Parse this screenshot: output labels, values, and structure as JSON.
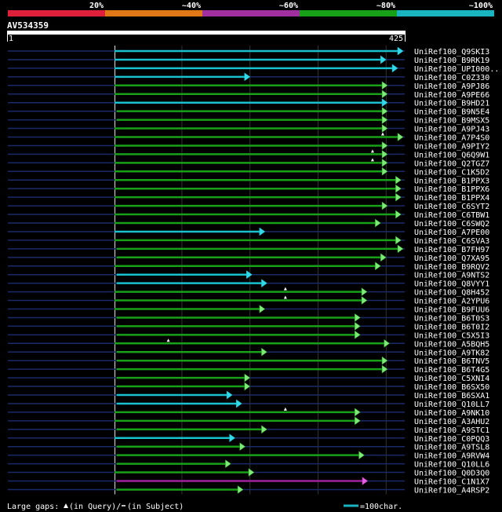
{
  "query": {
    "name": "AV534359",
    "length": 425,
    "start_label": "1",
    "end_label": "425"
  },
  "identity_scale": {
    "labels": [
      "20%",
      "~40%",
      "~60%",
      "~80%",
      "~100%"
    ],
    "colors": [
      "#e0203a",
      "#e07818",
      "#a030a0",
      "#18a018",
      "#18b4c0"
    ]
  },
  "legend": {
    "large_gaps_label": "Large gaps: ",
    "in_query": "(in Query)/",
    "in_subject": "(in Subject)",
    "scale_label": "=100char."
  },
  "chart_data": {
    "type": "alignment-overview",
    "x_axis": {
      "min": 1,
      "max": 425,
      "gridlines": [
        1,
        100,
        200,
        300,
        400
      ]
    },
    "hits": [
      {
        "name": "UniRef100_Q9SKI3",
        "cls": "cyan",
        "start": 1,
        "end": 425,
        "gap": null
      },
      {
        "name": "UniRef100_B9RK19",
        "cls": "cyan",
        "start": 1,
        "end": 400,
        "gap": null
      },
      {
        "name": "UniRef100_UPI000..",
        "cls": "cyan",
        "start": 1,
        "end": 417,
        "gap": null
      },
      {
        "name": "UniRef100_C0Z330",
        "cls": "cyan",
        "start": 1,
        "end": 200,
        "gap": null
      },
      {
        "name": "UniRef100_A9PJ86",
        "cls": "green",
        "start": 1,
        "end": 402,
        "gap": null
      },
      {
        "name": "UniRef100_A9PE66",
        "cls": "green",
        "start": 1,
        "end": 402,
        "gap": null
      },
      {
        "name": "UniRef100_B9HD21",
        "cls": "cyan",
        "start": 1,
        "end": 402,
        "gap": null
      },
      {
        "name": "UniRef100_B9N5E4",
        "cls": "green",
        "start": 4,
        "end": 402,
        "gap": null
      },
      {
        "name": "UniRef100_B9MSX5",
        "cls": "green",
        "start": 4,
        "end": 402,
        "gap": null
      },
      {
        "name": "UniRef100_A9PJ43",
        "cls": "green",
        "start": 1,
        "end": 402,
        "gap": null
      },
      {
        "name": "UniRef100_A7P4S0",
        "cls": "green",
        "start": 1,
        "end": 425,
        "gap": 395
      },
      {
        "name": "UniRef100_A9PIY2",
        "cls": "green",
        "start": 1,
        "end": 402,
        "gap": null
      },
      {
        "name": "UniRef100_Q6Q9W1",
        "cls": "green",
        "start": 1,
        "end": 402,
        "gap": 380
      },
      {
        "name": "UniRef100_Q2TGZ7",
        "cls": "green",
        "start": 1,
        "end": 402,
        "gap": 380
      },
      {
        "name": "UniRef100_C1K5D2",
        "cls": "green",
        "start": 1,
        "end": 402,
        "gap": null
      },
      {
        "name": "UniRef100_B1PPX3",
        "cls": "green",
        "start": 1,
        "end": 422,
        "gap": null
      },
      {
        "name": "UniRef100_B1PPX6",
        "cls": "green",
        "start": 1,
        "end": 422,
        "gap": null
      },
      {
        "name": "UniRef100_B1PPX4",
        "cls": "green",
        "start": 1,
        "end": 422,
        "gap": null
      },
      {
        "name": "UniRef100_C6SYT2",
        "cls": "green",
        "start": 1,
        "end": 402,
        "gap": null
      },
      {
        "name": "UniRef100_C6TBW1",
        "cls": "green",
        "start": 1,
        "end": 422,
        "gap": null
      },
      {
        "name": "UniRef100_C6SWQ2",
        "cls": "green",
        "start": 1,
        "end": 392,
        "gap": null
      },
      {
        "name": "UniRef100_A7PE00",
        "cls": "cyan",
        "start": 1,
        "end": 222,
        "gap": null
      },
      {
        "name": "UniRef100_C6SVA3",
        "cls": "green",
        "start": 1,
        "end": 422,
        "gap": null
      },
      {
        "name": "UniRef100_B7FH97",
        "cls": "green",
        "start": 4,
        "end": 425,
        "gap": null
      },
      {
        "name": "UniRef100_Q7XA95",
        "cls": "green",
        "start": 4,
        "end": 400,
        "gap": null
      },
      {
        "name": "UniRef100_B9RQV2",
        "cls": "green",
        "start": 1,
        "end": 392,
        "gap": null
      },
      {
        "name": "UniRef100_A9NTS2",
        "cls": "cyan",
        "start": 4,
        "end": 203,
        "gap": null
      },
      {
        "name": "UniRef100_Q8VYY1",
        "cls": "cyan",
        "start": 4,
        "end": 225,
        "gap": null
      },
      {
        "name": "UniRef100_Q8H452",
        "cls": "green",
        "start": 1,
        "end": 372,
        "gap": 252
      },
      {
        "name": "UniRef100_A2YPU6",
        "cls": "green",
        "start": 1,
        "end": 372,
        "gap": 252
      },
      {
        "name": "UniRef100_B9FUU6",
        "cls": "green",
        "start": 1,
        "end": 222,
        "gap": null
      },
      {
        "name": "UniRef100_B6T0S3",
        "cls": "green",
        "start": 4,
        "end": 362,
        "gap": null
      },
      {
        "name": "UniRef100_B6T0I2",
        "cls": "green",
        "start": 4,
        "end": 362,
        "gap": null
      },
      {
        "name": "UniRef100_C5X5I3",
        "cls": "green",
        "start": 4,
        "end": 362,
        "gap": null
      },
      {
        "name": "UniRef100_A5BQH5",
        "cls": "green",
        "start": 1,
        "end": 405,
        "gap": 80
      },
      {
        "name": "UniRef100_A9TK82",
        "cls": "green",
        "start": 4,
        "end": 225,
        "gap": null
      },
      {
        "name": "UniRef100_B6TNV5",
        "cls": "green",
        "start": 4,
        "end": 402,
        "gap": null
      },
      {
        "name": "UniRef100_B6T4G5",
        "cls": "green",
        "start": 4,
        "end": 402,
        "gap": null
      },
      {
        "name": "UniRef100_C5XNI4",
        "cls": "green",
        "start": 4,
        "end": 200,
        "gap": null
      },
      {
        "name": "UniRef100_B6SX50",
        "cls": "green",
        "start": 4,
        "end": 200,
        "gap": null
      },
      {
        "name": "UniRef100_B6SXA1",
        "cls": "cyan",
        "start": 4,
        "end": 174,
        "gap": null
      },
      {
        "name": "UniRef100_Q10LL7",
        "cls": "cyan",
        "start": 4,
        "end": 188,
        "gap": null
      },
      {
        "name": "UniRef100_A9NK10",
        "cls": "green",
        "start": 1,
        "end": 362,
        "gap": 252
      },
      {
        "name": "UniRef100_A3AHU2",
        "cls": "green",
        "start": 1,
        "end": 362,
        "gap": null
      },
      {
        "name": "UniRef100_A9STC1",
        "cls": "green",
        "start": 4,
        "end": 225,
        "gap": null
      },
      {
        "name": "UniRef100_C0PQQ3",
        "cls": "cyan",
        "start": 1,
        "end": 178,
        "gap": null
      },
      {
        "name": "UniRef100_A9TSL8",
        "cls": "green",
        "start": 4,
        "end": 193,
        "gap": null
      },
      {
        "name": "UniRef100_A9RVW4",
        "cls": "green",
        "start": 4,
        "end": 368,
        "gap": null
      },
      {
        "name": "UniRef100_Q10LL6",
        "cls": "green",
        "start": 4,
        "end": 172,
        "gap": null
      },
      {
        "name": "UniRef100_Q0D3Q0",
        "cls": "green",
        "start": 1,
        "end": 206,
        "gap": null
      },
      {
        "name": "UniRef100_C1N1X7",
        "cls": "purple",
        "start": 4,
        "end": 373,
        "gap": null
      },
      {
        "name": "UniRef100_A4RSP2",
        "cls": "green",
        "start": 4,
        "end": 190,
        "gap": null
      }
    ]
  }
}
